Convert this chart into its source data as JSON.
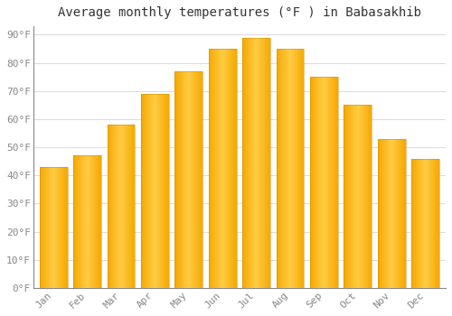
{
  "title": "Average monthly temperatures (°F ) in Babasakhib",
  "months": [
    "Jan",
    "Feb",
    "Mar",
    "Apr",
    "May",
    "Jun",
    "Jul",
    "Aug",
    "Sep",
    "Oct",
    "Nov",
    "Dec"
  ],
  "values": [
    43,
    47,
    58,
    69,
    77,
    85,
    89,
    85,
    75,
    65,
    53,
    46
  ],
  "bar_color_center": "#FFCC44",
  "bar_color_edge": "#F5A800",
  "background_color": "#FFFFFF",
  "plot_bg_color": "#FFFFFF",
  "grid_color": "#DDDDDD",
  "title_fontsize": 10,
  "tick_fontsize": 8,
  "ylim": [
    0,
    93
  ],
  "yticks": [
    0,
    10,
    20,
    30,
    40,
    50,
    60,
    70,
    80,
    90
  ],
  "bar_width": 0.82
}
